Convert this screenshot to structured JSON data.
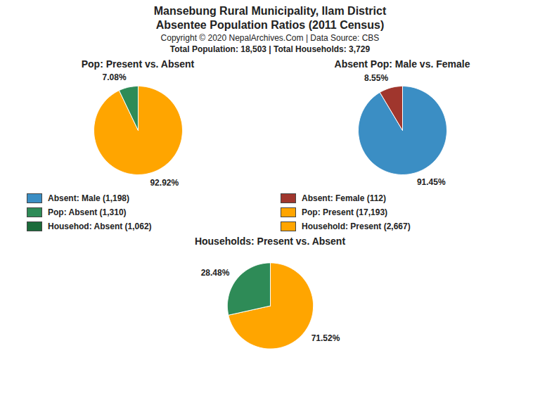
{
  "title": "Mansebung Rural Municipality, Ilam District",
  "subtitle": "Absentee Population Ratios (2011 Census)",
  "annotations": [
    "Copyright © 2020 NepalArchives.Com | Data Source: CBS",
    "Total Population: 18,503 | Total Households: 3,729"
  ],
  "legend_items": [
    {
      "label": "Absent: Male (1,198)",
      "color": "#3B8EC4"
    },
    {
      "label": "Absent: Female (112)",
      "color": "#A0362D"
    },
    {
      "label": "Pop: Absent (1,310)",
      "color": "#2E8B57"
    },
    {
      "label": "Pop: Present (17,193)",
      "color": "#FFA500"
    },
    {
      "label": "Househod: Absent (1,062)",
      "color": "#1B6B3A"
    },
    {
      "label": "Household: Present (2,667)",
      "color": "#FFA500"
    }
  ],
  "chart_data": [
    {
      "type": "pie",
      "title": "Pop: Present vs. Absent",
      "values": [
        92.92,
        7.08
      ],
      "value_labels": [
        "92.92%",
        "7.08%"
      ],
      "colors": [
        "#FFA500",
        "#2E8B57"
      ],
      "data_labels": true
    },
    {
      "type": "pie",
      "title": "Absent Pop: Male vs. Female",
      "values": [
        91.45,
        8.55
      ],
      "value_labels": [
        "91.45%",
        "8.55%"
      ],
      "colors": [
        "#3B8EC4",
        "#A0362D"
      ],
      "data_labels": true
    },
    {
      "type": "pie",
      "title": "Households: Present vs. Absent",
      "values": [
        71.52,
        28.48
      ],
      "value_labels": [
        "71.52%",
        "28.48%"
      ],
      "colors": [
        "#FFA500",
        "#2E8B57"
      ],
      "data_labels": true
    }
  ]
}
